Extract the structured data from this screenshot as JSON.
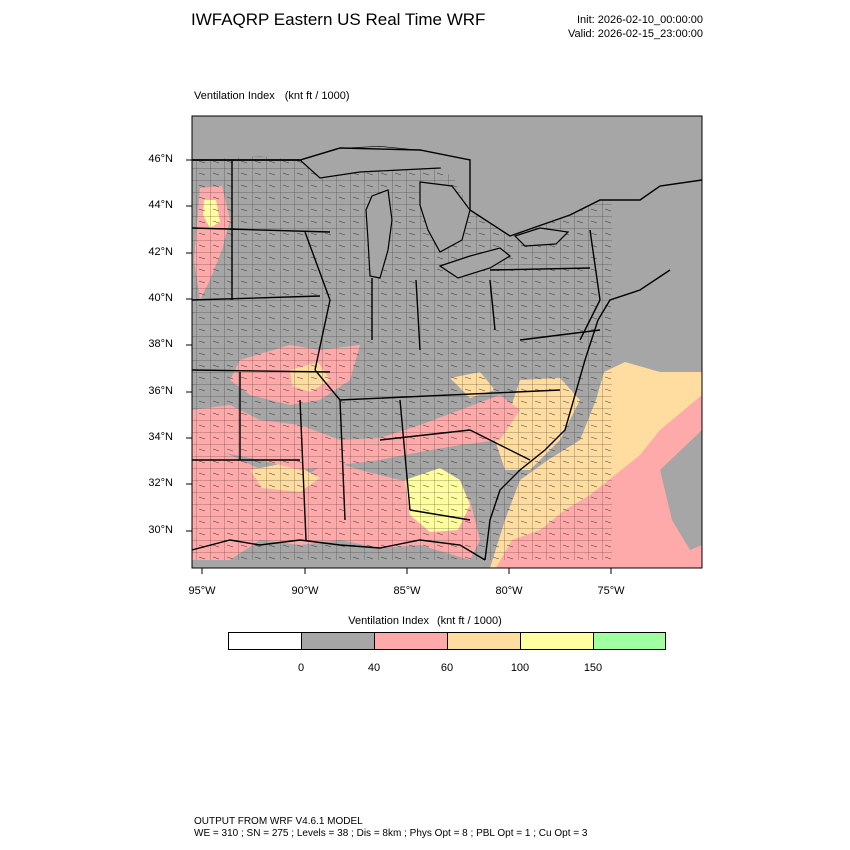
{
  "header": {
    "title": "IWFAQRP Eastern US Real Time WRF",
    "init": "Init: 2026-02-10_00:00:00",
    "valid": "Valid: 2026-02-15_23:00:00"
  },
  "field": {
    "name": "Ventilation Index",
    "units": "(knt ft / 1000)"
  },
  "map": {
    "lat_labels": [
      "46°N",
      "44°N",
      "42°N",
      "40°N",
      "38°N",
      "36°N",
      "34°N",
      "32°N",
      "30°N"
    ],
    "lon_labels": [
      "95°W",
      "90°W",
      "85°W",
      "80°W",
      "75°W"
    ],
    "colors": {
      "land_low": "#a6a6a6",
      "bin_40_60": "#ffaaaa",
      "bin_60_100": "#ffdca0",
      "bin_100_150": "#ffffa0",
      "bin_150_plus": "#a0ffa0"
    }
  },
  "colorbar": {
    "title": "Ventilation Index",
    "units": "(knt ft / 1000)",
    "bins": [
      {
        "color": "#ffffff"
      },
      {
        "color": "#a6a6a6"
      },
      {
        "color": "#ffaaaa"
      },
      {
        "color": "#ffdca0"
      },
      {
        "color": "#ffffa0"
      },
      {
        "color": "#a0ffa0"
      }
    ],
    "ticks": [
      "0",
      "40",
      "60",
      "100",
      "150"
    ]
  },
  "footer": {
    "line1": "OUTPUT FROM WRF V4.6.1 MODEL",
    "line2": "WE = 310 ; SN = 275 ; Levels = 38 ; Dis = 8km ; Phys Opt = 8 ; PBL Opt = 1 ; Cu Opt = 3"
  }
}
